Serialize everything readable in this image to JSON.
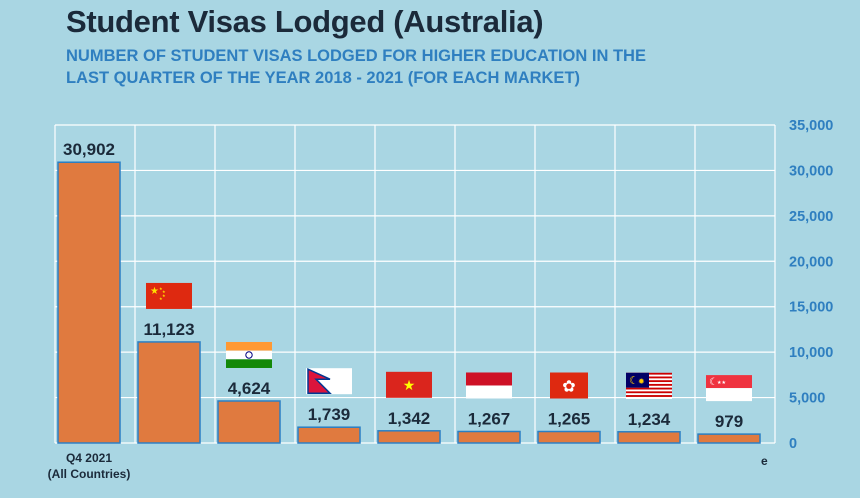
{
  "header": {
    "title": "Student Visas Lodged (Australia)",
    "subtitle_line1": "NUMBER OF STUDENT VISAS LODGED FOR HIGHER EDUCATION IN THE",
    "subtitle_line2": "LAST QUARTER OF THE YEAR 2018 - 2021 (FOR EACH MARKET)"
  },
  "footnote": "e",
  "colors": {
    "background": "#a9d6e3",
    "bar": "#e07a3f",
    "bar_outline": "#2a7fc4",
    "tick_text": "#2f7fc0",
    "title_text": "#1b2a3a"
  },
  "chart_data": {
    "type": "bar",
    "title": "Student Visas Lodged (Australia)",
    "subtitle": "NUMBER OF STUDENT VISAS LODGED FOR HIGHER EDUCATION IN THE LAST QUARTER OF THE YEAR 2018 - 2021 (FOR EACH MARKET)",
    "categories": [
      "Q4 2021 (All Countries)",
      "China",
      "India",
      "Nepal",
      "Vietnam",
      "Indonesia",
      "Hong Kong",
      "Malaysia",
      "Singapore"
    ],
    "category_labels": [
      [
        "Q4 2021",
        "(All Countries)"
      ],
      [
        ""
      ],
      [
        ""
      ],
      [
        ""
      ],
      [
        ""
      ],
      [
        ""
      ],
      [
        ""
      ],
      [
        ""
      ],
      [
        ""
      ]
    ],
    "category_icons": [
      "",
      "flag-china-icon",
      "flag-india-icon",
      "flag-nepal-icon",
      "flag-vietnam-icon",
      "flag-indonesia-icon",
      "flag-hong-kong-icon",
      "flag-malaysia-icon",
      "flag-singapore-icon"
    ],
    "values": [
      30902,
      11123,
      4624,
      1739,
      1342,
      1267,
      1265,
      1234,
      979
    ],
    "value_labels": [
      "30,902",
      "11,123",
      "4,624",
      "1,739",
      "1,342",
      "1,267",
      "1,265",
      "1,234",
      "979"
    ],
    "ylim": [
      0,
      35000
    ],
    "yticks": [
      0,
      5000,
      10000,
      15000,
      20000,
      25000,
      30000,
      35000
    ],
    "ytick_labels": [
      "0",
      "5,000",
      "10,000",
      "15,000",
      "20,000",
      "25,000",
      "30,000",
      "35,000"
    ],
    "y_axis_side": "right",
    "grid": true,
    "xlabel": "",
    "ylabel": ""
  }
}
